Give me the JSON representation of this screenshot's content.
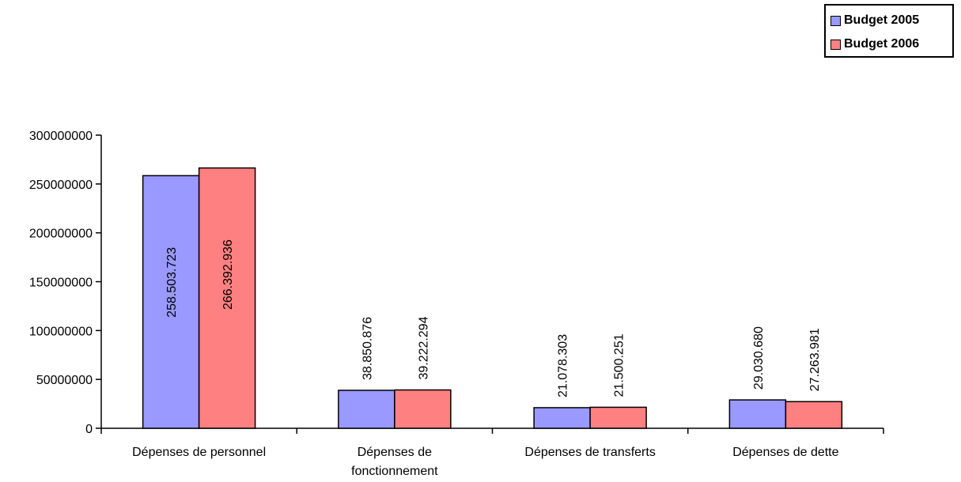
{
  "chart_data": {
    "type": "bar",
    "categories": [
      "Dépenses de personnel",
      "Dépenses de fonctionnement",
      "Dépenses de transferts",
      "Dépenses de dette"
    ],
    "category_label_lines": [
      [
        "Dépenses de personnel"
      ],
      [
        "Dépenses de",
        "fonctionnement"
      ],
      [
        "Dépenses de transferts"
      ],
      [
        "Dépenses de dette"
      ]
    ],
    "series": [
      {
        "name": "Budget 2005",
        "color": "#9999ff",
        "values": [
          258503723,
          38850876,
          21078303,
          29030680
        ],
        "labels": [
          "258.503.723",
          "38.850.876",
          "21.078.303",
          "29.030.680"
        ]
      },
      {
        "name": "Budget 2006",
        "color": "#ff8080",
        "values": [
          266392936,
          39222294,
          21500251,
          27263981
        ],
        "labels": [
          "266.392.936",
          "39.222.294",
          "21.500.251",
          "27.263.981"
        ]
      }
    ],
    "yticks": [
      0,
      50000000,
      100000000,
      150000000,
      200000000,
      250000000,
      300000000
    ],
    "ylim": [
      0,
      300000000
    ],
    "grid": false,
    "legend_position": "top-right",
    "title": "",
    "xlabel": "",
    "ylabel": ""
  }
}
